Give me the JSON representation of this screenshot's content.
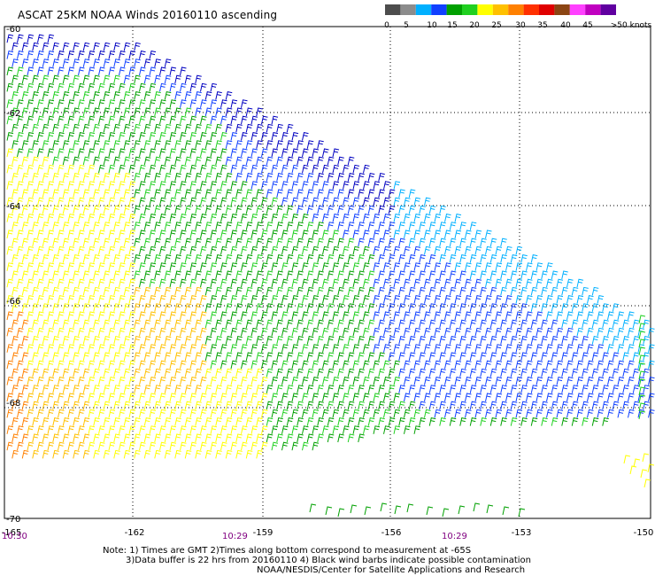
{
  "title": "ASCAT 25KM NOAA Winds 20160110 ascending",
  "legend": {
    "bins": [
      {
        "color": "#4d4d4d"
      },
      {
        "color": "#8c8c8c"
      },
      {
        "color": "#00b0ff"
      },
      {
        "color": "#1040ff"
      },
      {
        "color": "#00a000"
      },
      {
        "color": "#20d020"
      },
      {
        "color": "#ffff00"
      },
      {
        "color": "#ffc000"
      },
      {
        "color": "#ff8000"
      },
      {
        "color": "#ff3000"
      },
      {
        "color": "#e00000"
      },
      {
        "color": "#8b4513"
      },
      {
        "color": "#ff40ff"
      },
      {
        "color": "#c000c0"
      },
      {
        "color": "#6000a0"
      }
    ],
    "labels": [
      "0",
      "5",
      "10",
      "15",
      "20",
      "25",
      "30",
      "35",
      "40",
      "45",
      ">50 knots"
    ]
  },
  "axes": {
    "lat_labels": [
      "-60",
      "-62",
      "-64",
      "-66",
      "-68",
      "-70"
    ],
    "lon_labels": [
      "-165",
      "-162",
      "-159",
      "-156",
      "-153",
      "-150"
    ]
  },
  "times": {
    "left": "10:30",
    "mid1": "10:29",
    "mid2": "10:29"
  },
  "notes": [
    "Note: 1) Times are GMT 2)Times along bottom correspond to measurement at -65S",
    "3)Data buffer is 22 hrs from 20160110 4) Black wind barbs indicate possible contamination",
    "NOAA/NESDIS/Center for Satellite Applications and Research"
  ],
  "colors": {
    "yellow": "#ffff00",
    "gold": "#ffc000",
    "orange": "#ff8000",
    "green_dark": "#00a000",
    "green": "#20d020",
    "blue": "#1040ff",
    "navy": "#0000c0",
    "cyan": "#00b0ff"
  }
}
